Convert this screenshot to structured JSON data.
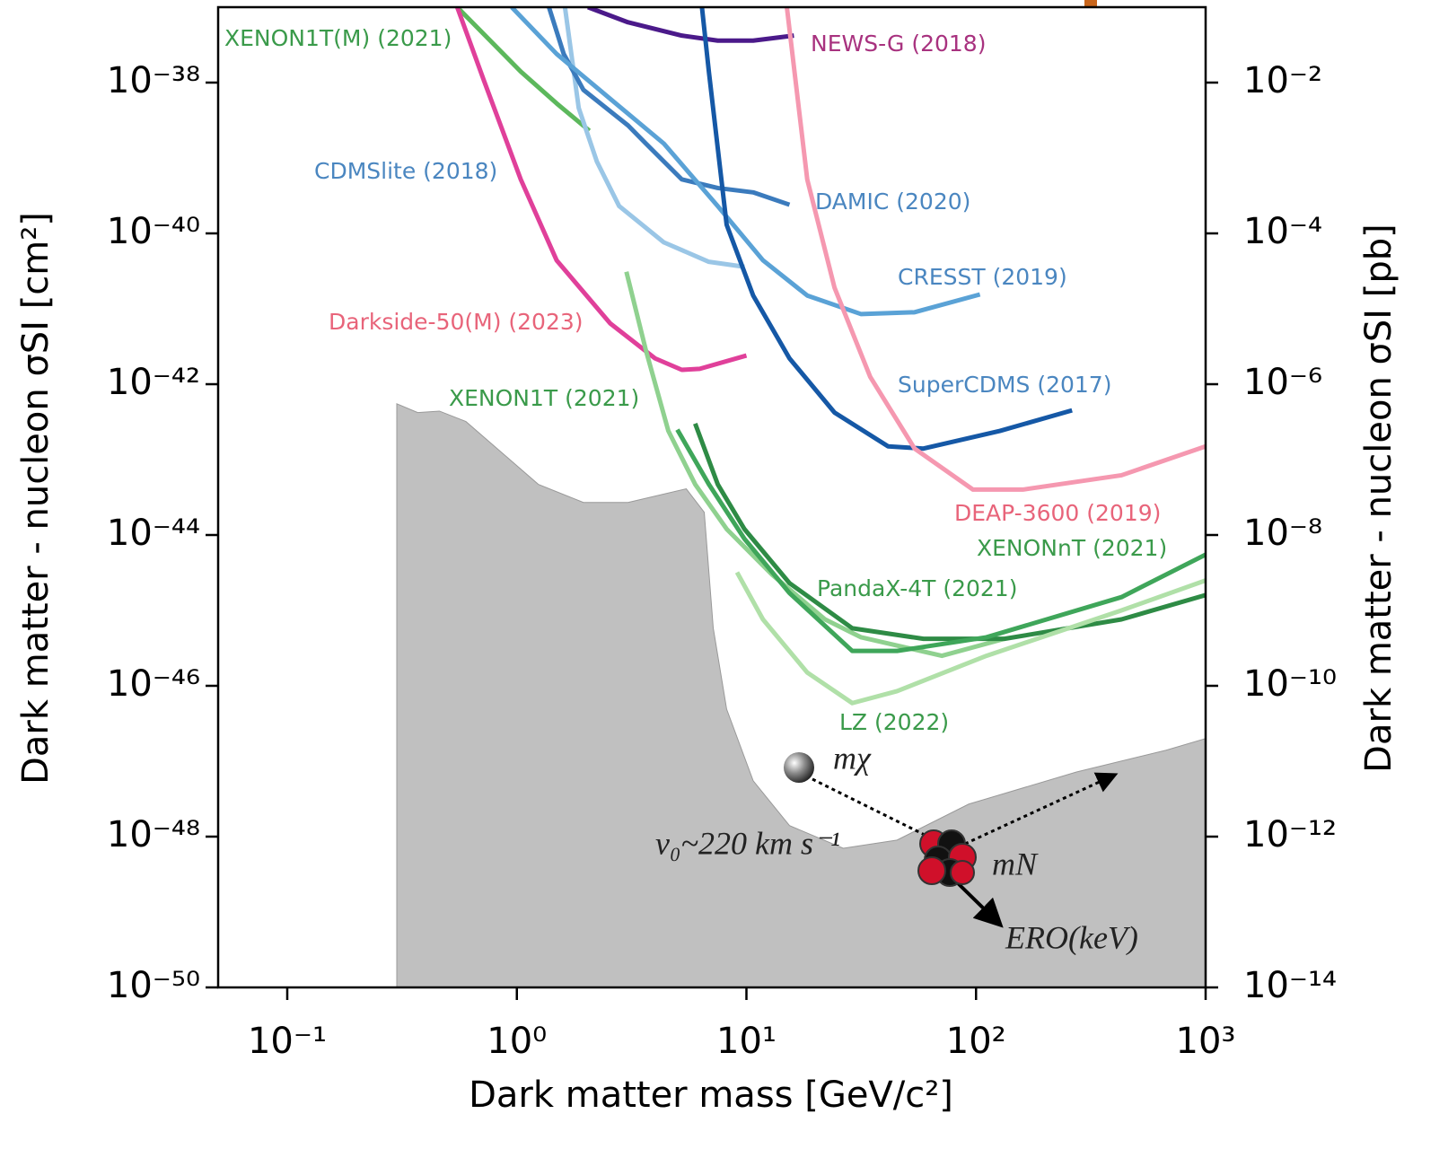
{
  "chart_data": {
    "type": "line",
    "xlabel": "Dark matter mass [GeV/c²]",
    "ylabel": "Dark matter - nucleon σSI [cm²]",
    "y2label": "Dark matter - nucleon σSI [pb]",
    "xscale": "log",
    "yscale": "log",
    "xlim": [
      0.05,
      1000
    ],
    "ylim": [
      1e-50,
      1e-37
    ],
    "y2lim": [
      1e-14,
      0.1
    ],
    "xticks": [
      {
        "value": 0.1,
        "label": "10⁻¹"
      },
      {
        "value": 1,
        "label": "10⁰"
      },
      {
        "value": 10,
        "label": "10¹"
      },
      {
        "value": 100,
        "label": "10²"
      },
      {
        "value": 1000,
        "label": "10³"
      }
    ],
    "yticks": [
      {
        "value": 1e-38,
        "label": "10⁻³⁸"
      },
      {
        "value": 1e-40,
        "label": "10⁻⁴⁰"
      },
      {
        "value": 1e-42,
        "label": "10⁻⁴²"
      },
      {
        "value": 1e-44,
        "label": "10⁻⁴⁴"
      },
      {
        "value": 1e-46,
        "label": "10⁻⁴⁶"
      },
      {
        "value": 1e-48,
        "label": "10⁻⁴⁸"
      },
      {
        "value": 1e-50,
        "label": "10⁻⁵⁰"
      }
    ],
    "y2ticks": [
      {
        "value": 0.01,
        "label": "10⁻²"
      },
      {
        "value": 0.0001,
        "label": "10⁻⁴"
      },
      {
        "value": 1e-06,
        "label": "10⁻⁶"
      },
      {
        "value": 1e-08,
        "label": "10⁻⁸"
      },
      {
        "value": 1e-10,
        "label": "10⁻¹⁰"
      },
      {
        "value": 1e-12,
        "label": "10⁻¹²"
      },
      {
        "value": 1e-14,
        "label": "10⁻¹⁴"
      }
    ],
    "series": [
      {
        "name": "XENON1T(M) (2021)",
        "color": "#5cb85c",
        "label_color": "#3a9a4a",
        "x": [
          0.55,
          1.04,
          1.49,
          2.07
        ],
        "values": [
          1e-37,
          1.4e-38,
          5.3e-39,
          2.3e-39
        ]
      },
      {
        "name": "NEWS-G (2018)",
        "color": "#4b1a8a",
        "label_color": "#a8327f",
        "x": [
          2.04,
          3.05,
          5.23,
          7.5,
          10.7,
          16.1
        ],
        "values": [
          1e-37,
          6.3e-38,
          4.2e-38,
          3.6e-38,
          3.6e-38,
          4.2e-38
        ]
      },
      {
        "name": "Darkside-50(M) (2023)",
        "color": "#e0409a",
        "label_color": "#e8647a",
        "x": [
          0.55,
          0.72,
          1.04,
          1.49,
          2.55,
          4.0,
          5.23,
          6.26,
          10
        ],
        "values": [
          1e-37,
          1.05e-38,
          5.2e-40,
          4.4e-41,
          6.4e-42,
          2.2e-42,
          1.55e-42,
          1.6e-42,
          2.4e-42
        ]
      },
      {
        "name": "CDMSlite (2018)",
        "color": "#9ac6e6",
        "label_color": "#4a86c0",
        "x": [
          1.62,
          1.86,
          2.23,
          2.79,
          4.37,
          6.86,
          9.8
        ],
        "values": [
          1e-37,
          4.6e-39,
          9e-40,
          2.3e-40,
          7.6e-41,
          4.2e-41,
          3.6e-41
        ]
      },
      {
        "name": "DAMIC (2020)",
        "color": "#3b7bbd",
        "label_color": "#4a86c0",
        "x": [
          1.38,
          1.6,
          1.95,
          3.05,
          3.65,
          5.23,
          7.5,
          10.7,
          15.4
        ],
        "values": [
          1e-37,
          2.4e-38,
          8e-39,
          2.7e-39,
          1.55e-39,
          5.2e-40,
          4e-40,
          3.5e-40,
          2.4e-40
        ]
      },
      {
        "name": "CRESST (2019)",
        "color": "#5aa2d6",
        "label_color": "#4a86c0",
        "x": [
          0.95,
          1.49,
          2.55,
          4.37,
          7.5,
          11.8,
          18.4,
          31.6,
          54,
          104
        ],
        "values": [
          1e-37,
          2.4e-38,
          6.1e-39,
          1.55e-39,
          2.3e-40,
          4.4e-41,
          1.5e-41,
          8.5e-42,
          9e-42,
          1.55e-41
        ]
      },
      {
        "name": "SuperCDMS (2017)",
        "color": "#1558a6",
        "label_color": "#4a86c0",
        "x": [
          6.4,
          6.86,
          8.2,
          10.7,
          15.4,
          24.2,
          41.4,
          59,
          127,
          262
        ],
        "values": [
          1e-37,
          1.4e-38,
          1.3e-40,
          1.5e-41,
          2.2e-42,
          4.2e-43,
          1.5e-43,
          1.4e-43,
          2.4e-43,
          4.5e-43
        ]
      },
      {
        "name": "DEAP-3600 (2019)",
        "color": "#f598b0",
        "label_color": "#e8647a",
        "x": [
          15,
          18.4,
          24.2,
          34.6,
          54,
          97,
          160,
          430,
          1000
        ],
        "values": [
          1e-37,
          5.2e-40,
          1.9e-41,
          1.25e-42,
          1.4e-43,
          4e-44,
          4e-44,
          6.2e-44,
          1.5e-43
        ]
      },
      {
        "name": "XENON1T (2021)",
        "color": "#8fd18f",
        "label_color": "#3a9a4a",
        "x": [
          3.0,
          3.65,
          4.57,
          5.98,
          8.2,
          12.9,
          22,
          31.6,
          71,
          133
        ],
        "values": [
          3.1e-41,
          2.8e-42,
          2.4e-43,
          4.7e-44,
          1.2e-44,
          3e-45,
          7.6e-46,
          4.4e-46,
          2.5e-46,
          4.2e-46
        ]
      },
      {
        "name": "XENONnT (2021)",
        "color": "#2e8b45",
        "label_color": "#3a9a4a",
        "x": [
          5.98,
          7.5,
          9.8,
          15.4,
          28.9,
          59,
          133,
          430,
          1000
        ],
        "values": [
          3e-43,
          4.7e-44,
          1.2e-44,
          2.3e-45,
          5.8e-46,
          4.2e-46,
          4.2e-46,
          7.6e-46,
          1.6e-45
        ]
      },
      {
        "name": "PandaX-4T (2021)",
        "color": "#3fa65a",
        "label_color": "#3a9a4a",
        "x": [
          5.0,
          6.86,
          9.8,
          15.4,
          28.9,
          45.3,
          111,
          430,
          1000
        ],
        "values": [
          2.5e-43,
          4.7e-44,
          8.9e-45,
          1.7e-45,
          2.9e-46,
          2.9e-46,
          4.4e-46,
          1.5e-45,
          5.5e-45
        ]
      },
      {
        "name": "LZ (2022)",
        "color": "#b0e0a8",
        "label_color": "#3a9a4a",
        "x": [
          9.1,
          11.8,
          18.4,
          28.9,
          45.3,
          111,
          430,
          1000
        ],
        "values": [
          3.2e-45,
          7.6e-46,
          1.5e-46,
          5.9e-47,
          8.5e-47,
          2.5e-46,
          1e-45,
          2.5e-45
        ]
      }
    ],
    "area": {
      "color": "#c0c0c0",
      "x": [
        0.3,
        0.37,
        0.46,
        0.6,
        0.87,
        1.24,
        1.95,
        3.05,
        5.47,
        6.55,
        7.17,
        8.2,
        10.7,
        15.4,
        26.4,
        45.3,
        93,
        274,
        673,
        1000
      ],
      "values": [
        5.5e-43,
        4.2e-43,
        4.4e-43,
        3.2e-43,
        1.2e-43,
        4.7e-44,
        2.7e-44,
        2.7e-44,
        4.1e-44,
        2e-44,
        5.8e-46,
        4.9e-47,
        5.5e-48,
        1.4e-48,
        7e-49,
        9e-49,
        2.7e-48,
        7.2e-48,
        1.4e-47,
        2e-47
      ]
    },
    "annotations": [
      "mχ",
      "v₀~220 km s⁻¹",
      "mN",
      "ERO(keV)"
    ]
  }
}
